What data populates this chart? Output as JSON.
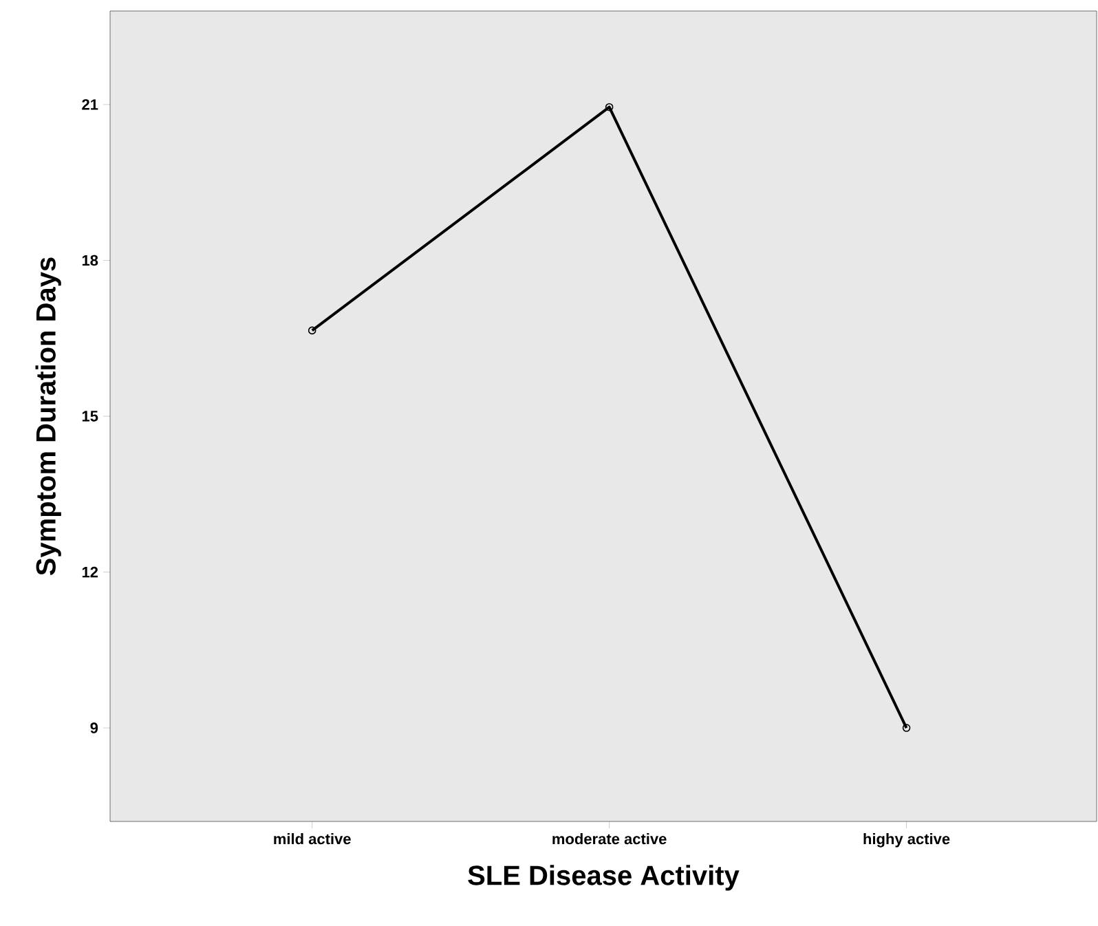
{
  "chart_data": {
    "type": "line",
    "xlabel": "SLE Disease Activity",
    "ylabel": "Symptom Duration Days",
    "categories": [
      "mild active",
      "moderate active",
      "highy active"
    ],
    "series": [
      {
        "color": "#000000",
        "values": [
          16.65,
          20.95,
          9.0
        ]
      }
    ],
    "ylim": [
      7.2,
      22.8
    ],
    "yticks": [
      9,
      12,
      15,
      18,
      21
    ],
    "marker": "circle",
    "line_style": "solid",
    "grid": false
  }
}
